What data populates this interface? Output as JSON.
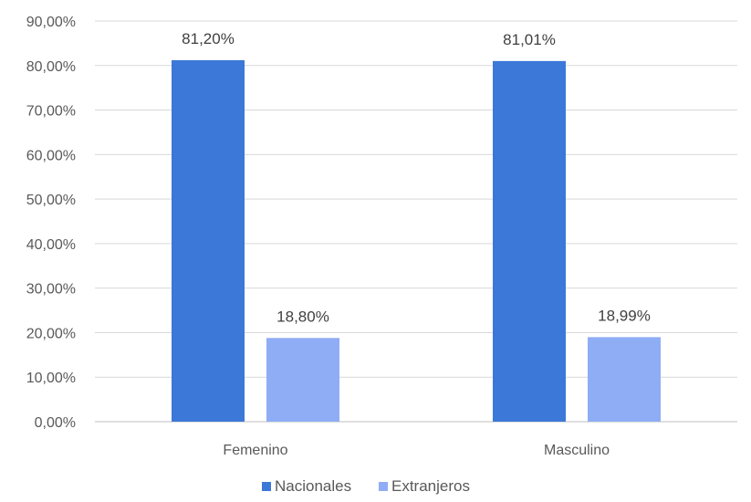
{
  "chart_data": {
    "type": "bar",
    "categories": [
      "Femenino",
      "Masculino"
    ],
    "series": [
      {
        "name": "Nacionales",
        "values": [
          81.2,
          81.01
        ],
        "labels": [
          "81,20%",
          "81,01%"
        ],
        "color": "#3C78D8"
      },
      {
        "name": "Extranjeros",
        "values": [
          18.8,
          18.99
        ],
        "labels": [
          "18,80%",
          "18,99%"
        ],
        "color": "#8FADF5"
      }
    ],
    "y_ticks": [
      "0,00%",
      "10,00%",
      "20,00%",
      "30,00%",
      "40,00%",
      "50,00%",
      "60,00%",
      "70,00%",
      "80,00%",
      "90,00%"
    ],
    "ylim": [
      0,
      90
    ],
    "grid": true,
    "legend_position": "bottom",
    "gridline_color": "#D9D9D9"
  }
}
